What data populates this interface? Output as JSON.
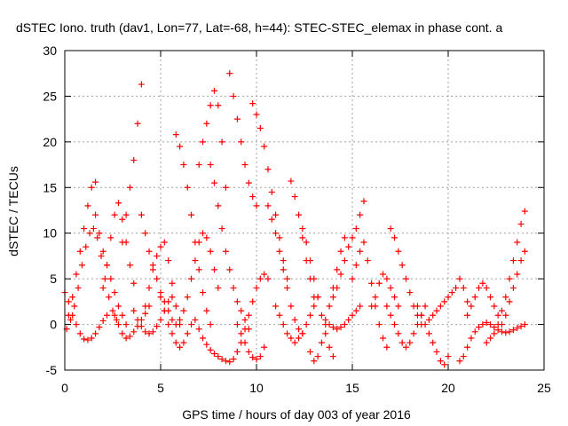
{
  "chart_data": {
    "type": "scatter",
    "title": "dSTEC Iono. truth (dav1, Lon=77, Lat=-68, h=44): STEC-STEC_elemax in phase cont. a",
    "xlabel": "GPS time / hours of day 003 of year 2016",
    "ylabel": "dSTEC  / TECUs",
    "xlim": [
      0,
      25
    ],
    "ylim": [
      -5,
      30
    ],
    "xticks": [
      0,
      5,
      10,
      15,
      20,
      25
    ],
    "yticks": [
      -5,
      0,
      5,
      10,
      15,
      20,
      25,
      30
    ],
    "grid": true,
    "marker": "+",
    "color": "#ff0000",
    "series": [
      {
        "x": [
          0.0,
          0.2,
          0.4,
          0.6,
          0.8,
          1.0,
          1.2,
          1.4,
          1.6,
          1.8,
          2.0,
          2.2
        ],
        "y": [
          3.5,
          2.5,
          1.0,
          0.0,
          -1.0,
          -1.6,
          -1.7,
          -1.5,
          -1.0,
          -0.3,
          0.4,
          1.0
        ]
      },
      {
        "x": [
          0.1,
          0.3,
          0.5,
          0.7,
          0.9,
          1.1,
          1.3,
          1.5,
          1.7,
          1.9,
          2.1,
          2.3,
          2.5,
          2.7
        ],
        "y": [
          -0.5,
          0.5,
          2.0,
          4.0,
          6.5,
          8.5,
          10.0,
          10.5,
          9.5,
          7.5,
          5.0,
          3.0,
          1.5,
          0.5
        ]
      },
      {
        "x": [
          0.2,
          0.4,
          0.6,
          0.8,
          1.0,
          1.2,
          1.4,
          1.6
        ],
        "y": [
          1.0,
          3.0,
          5.5,
          8.0,
          10.5,
          13.0,
          15.0,
          15.6
        ]
      },
      {
        "x": [
          1.6,
          1.8,
          2.0,
          2.2,
          2.4,
          2.6,
          2.8,
          3.0,
          3.2
        ],
        "y": [
          12.0,
          10.0,
          8.0,
          6.5,
          5.0,
          3.5,
          2.0,
          1.0,
          0.0
        ]
      },
      {
        "x": [
          2.0,
          2.2,
          2.4,
          2.6,
          2.8,
          3.0,
          3.2,
          3.4,
          3.6
        ],
        "y": [
          4.0,
          6.5,
          9.5,
          12.0,
          13.3,
          11.5,
          9.0,
          6.5,
          4.5
        ]
      },
      {
        "x": [
          2.6,
          2.8,
          3.0,
          3.2,
          3.4,
          3.6,
          3.8,
          4.0,
          4.2,
          4.4
        ],
        "y": [
          1.0,
          0.0,
          -1.0,
          -1.5,
          -1.3,
          -0.8,
          -0.2,
          0.5,
          1.2,
          2.0
        ]
      },
      {
        "x": [
          3.0,
          3.2,
          3.4,
          3.6,
          3.8,
          4.0
        ],
        "y": [
          9.0,
          12.0,
          15.0,
          18.0,
          22.0,
          26.3
        ]
      },
      {
        "x": [
          4.0,
          4.2,
          4.4,
          4.6,
          4.8,
          5.0,
          5.2,
          5.4,
          5.6,
          5.8
        ],
        "y": [
          12.0,
          10.0,
          8.0,
          6.5,
          5.0,
          3.5,
          2.5,
          1.5,
          0.5,
          0.0
        ]
      },
      {
        "x": [
          3.6,
          3.8,
          4.0,
          4.2,
          4.4,
          4.6,
          4.8,
          5.0,
          5.2,
          5.4,
          5.6
        ],
        "y": [
          1.5,
          0.5,
          -0.2,
          -0.8,
          -1.0,
          -0.8,
          -0.2,
          0.5,
          1.5,
          2.5,
          3.0
        ]
      },
      {
        "x": [
          4.2,
          4.4,
          4.6,
          4.8,
          5.0,
          5.2,
          5.4,
          5.6,
          5.8,
          6.0
        ],
        "y": [
          2.0,
          4.0,
          6.0,
          7.5,
          8.5,
          9.0,
          7.0,
          4.5,
          2.0,
          0.5
        ]
      },
      {
        "x": [
          5.0,
          5.2,
          5.4,
          5.6,
          5.8,
          6.0,
          6.2,
          6.4,
          6.6
        ],
        "y": [
          3.0,
          1.5,
          0.0,
          -1.0,
          -2.0,
          -2.5,
          -2.0,
          -1.0,
          0.0
        ]
      },
      {
        "x": [
          5.8,
          6.0,
          6.2,
          6.4,
          6.6,
          6.8,
          7.0,
          7.2,
          7.4,
          7.6
        ],
        "y": [
          20.8,
          19.5,
          17.5,
          15.0,
          12.0,
          9.0,
          6.0,
          3.5,
          1.5,
          0.0
        ]
      },
      {
        "x": [
          6.0,
          6.2,
          6.4,
          6.6,
          6.8,
          7.0,
          7.2,
          7.4,
          7.6,
          7.8,
          8.0
        ],
        "y": [
          0.0,
          1.5,
          3.0,
          5.0,
          7.0,
          9.0,
          10.0,
          9.5,
          8.0,
          6.0,
          4.0
        ]
      },
      {
        "x": [
          6.8,
          7.0,
          7.2,
          7.4,
          7.6,
          7.8,
          8.0,
          8.2,
          8.4,
          8.6,
          8.8,
          9.0
        ],
        "y": [
          0.5,
          -0.5,
          -1.5,
          -2.2,
          -2.8,
          -3.2,
          -3.5,
          -3.8,
          -4.0,
          -4.1,
          -3.8,
          -3.0
        ]
      },
      {
        "x": [
          7.0,
          7.2,
          7.4,
          7.6,
          7.8,
          8.0,
          8.2,
          8.4
        ],
        "y": [
          17.5,
          20.0,
          22.0,
          24.0,
          25.6,
          24.0,
          20.0,
          15.0
        ]
      },
      {
        "x": [
          7.6,
          7.8,
          8.0,
          8.2,
          8.4,
          8.6,
          8.8,
          9.0,
          9.2,
          9.4,
          9.6
        ],
        "y": [
          17.5,
          15.5,
          13.0,
          10.5,
          8.0,
          6.0,
          4.0,
          2.5,
          1.5,
          0.5,
          -0.5
        ]
      },
      {
        "x": [
          8.6,
          8.8,
          9.0,
          9.2,
          9.4,
          9.6,
          9.8,
          10.0
        ],
        "y": [
          27.5,
          25.0,
          22.5,
          20.0,
          17.5,
          15.5,
          14.0,
          13.0
        ]
      },
      {
        "x": [
          9.0,
          9.2,
          9.4,
          9.6,
          9.8,
          10.0,
          10.2,
          10.4,
          10.6
        ],
        "y": [
          -3.0,
          -2.0,
          -0.5,
          1.0,
          2.5,
          4.0,
          5.0,
          5.5,
          5.0
        ]
      },
      {
        "x": [
          9.0,
          9.2,
          9.4,
          9.6,
          9.8,
          10.0,
          10.2,
          10.4
        ],
        "y": [
          0.0,
          -1.0,
          -2.0,
          -3.0,
          -3.6,
          -3.8,
          -3.5,
          -2.5
        ]
      },
      {
        "x": [
          9.8,
          10.0,
          10.2,
          10.4,
          10.6,
          10.8,
          11.0,
          11.2,
          11.4,
          11.6
        ],
        "y": [
          24.2,
          23.0,
          21.5,
          19.5,
          17.0,
          14.5,
          12.0,
          9.5,
          7.0,
          5.0
        ]
      },
      {
        "x": [
          10.6,
          10.8,
          11.0,
          11.2,
          11.4,
          11.6,
          11.8,
          12.0,
          12.2,
          12.4
        ],
        "y": [
          13.0,
          11.5,
          10.0,
          8.0,
          6.0,
          4.0,
          2.0,
          0.5,
          -0.5,
          -1.0
        ]
      },
      {
        "x": [
          11.8,
          12.0,
          12.2,
          12.4,
          12.6,
          12.8,
          13.0
        ],
        "y": [
          15.7,
          14.0,
          12.0,
          9.5,
          7.0,
          5.0,
          3.0
        ]
      },
      {
        "x": [
          11.0,
          11.2,
          11.4,
          11.6,
          11.8,
          12.0,
          12.2,
          12.4,
          12.6,
          12.8,
          13.0,
          13.2
        ],
        "y": [
          2.0,
          1.0,
          0.0,
          -1.0,
          -1.5,
          -2.0,
          -1.5,
          -1.0,
          0.0,
          1.0,
          2.0,
          3.0
        ]
      },
      {
        "x": [
          12.4,
          12.6,
          12.8,
          13.0,
          13.2,
          13.4,
          13.6,
          13.8,
          14.0
        ],
        "y": [
          10.5,
          9.0,
          7.0,
          5.0,
          3.0,
          1.0,
          -1.0,
          -2.5,
          -3.5
        ]
      },
      {
        "x": [
          12.8,
          13.0,
          13.2,
          13.4,
          13.6,
          13.8,
          14.0,
          14.2,
          14.4,
          14.6
        ],
        "y": [
          -3.0,
          -4.0,
          -3.5,
          -2.0,
          0.0,
          2.0,
          4.0,
          6.0,
          8.0,
          9.5
        ]
      },
      {
        "x": [
          14.0,
          14.2,
          14.4,
          14.6,
          14.8,
          15.0,
          15.2,
          15.4,
          15.6
        ],
        "y": [
          3.0,
          4.0,
          5.5,
          7.0,
          8.5,
          9.5,
          10.5,
          12.0,
          13.5
        ]
      },
      {
        "x": [
          13.6,
          13.8,
          14.0,
          14.2,
          14.4,
          14.6,
          14.8,
          15.0,
          15.2,
          15.4
        ],
        "y": [
          0.5,
          0.0,
          -0.3,
          -0.5,
          -0.3,
          0.0,
          0.5,
          1.0,
          1.5,
          2.0
        ]
      },
      {
        "x": [
          15.0,
          15.2,
          15.4,
          15.6,
          15.8,
          16.0,
          16.2,
          16.4,
          16.6,
          16.8
        ],
        "y": [
          5.0,
          6.5,
          8.0,
          9.0,
          7.0,
          4.5,
          2.0,
          0.0,
          -1.5,
          -2.5
        ]
      },
      {
        "x": [
          16.0,
          16.2,
          16.4,
          16.6,
          16.8,
          17.0,
          17.2,
          17.4
        ],
        "y": [
          2.0,
          3.0,
          4.5,
          5.5,
          5.0,
          4.0,
          3.0,
          2.0
        ]
      },
      {
        "x": [
          17.0,
          17.2,
          17.4,
          17.6,
          17.8,
          18.0,
          18.2,
          18.4,
          18.6
        ],
        "y": [
          10.5,
          9.5,
          8.0,
          6.5,
          5.0,
          3.5,
          2.0,
          1.0,
          0.0
        ]
      },
      {
        "x": [
          16.8,
          17.0,
          17.2,
          17.4,
          17.6,
          17.8,
          18.0,
          18.2,
          18.4,
          18.6,
          18.8
        ],
        "y": [
          2.0,
          1.0,
          0.0,
          -1.0,
          -2.0,
          -2.5,
          -2.0,
          -1.0,
          0.0,
          1.0,
          2.0
        ]
      },
      {
        "x": [
          18.4,
          18.6,
          18.8,
          19.0,
          19.2,
          19.4,
          19.6,
          19.8,
          20.0
        ],
        "y": [
          2.0,
          1.0,
          0.0,
          -1.0,
          -2.0,
          -3.0,
          -4.0,
          -4.4,
          -3.5
        ]
      },
      {
        "x": [
          19.0,
          19.2,
          19.4,
          19.6,
          19.8,
          20.0,
          20.2,
          20.4,
          20.6,
          20.8,
          21.0
        ],
        "y": [
          0.5,
          1.0,
          1.5,
          2.0,
          2.5,
          3.0,
          3.5,
          4.0,
          5.0,
          4.0,
          2.5
        ]
      },
      {
        "x": [
          20.6,
          20.8,
          21.0,
          21.2,
          21.4,
          21.6,
          21.8,
          22.0,
          22.2,
          22.4,
          22.6,
          22.8,
          23.0,
          23.2,
          23.4,
          23.6,
          23.8,
          24.0
        ],
        "y": [
          -4.0,
          -3.5,
          -2.5,
          -1.5,
          -0.8,
          -0.3,
          0.0,
          0.2,
          0.0,
          -0.3,
          -0.6,
          -0.8,
          -0.9,
          -0.8,
          -0.6,
          -0.4,
          -0.2,
          0.0
        ]
      },
      {
        "x": [
          21.0,
          21.2,
          21.4,
          21.6,
          21.8,
          22.0,
          22.2,
          22.4,
          22.6
        ],
        "y": [
          1.0,
          2.0,
          3.0,
          4.0,
          4.5,
          4.0,
          3.0,
          2.0,
          1.0
        ]
      },
      {
        "x": [
          22.0,
          22.2,
          22.4,
          22.6,
          22.8,
          23.0,
          23.2,
          23.4,
          23.6,
          23.8,
          24.0
        ],
        "y": [
          -2.0,
          -1.5,
          -1.0,
          0.0,
          1.5,
          3.0,
          5.0,
          7.0,
          9.0,
          11.0,
          12.4
        ]
      },
      {
        "x": [
          22.8,
          23.0,
          23.2,
          23.4,
          23.6,
          23.8,
          24.0
        ],
        "y": [
          0.0,
          1.0,
          2.5,
          4.0,
          5.5,
          7.0,
          8.0
        ]
      }
    ]
  }
}
